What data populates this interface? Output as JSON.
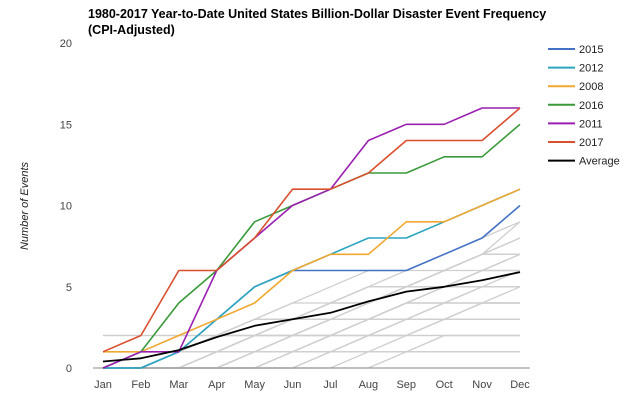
{
  "chart_data": {
    "type": "line",
    "title": "1980-2017 Year-to-Date United States Billion-Dollar Disaster Event Frequency (CPI-Adjusted)",
    "xlabel": "",
    "ylabel": "Number of Events",
    "categories": [
      "Jan",
      "Feb",
      "Mar",
      "Apr",
      "May",
      "Jun",
      "Jul",
      "Aug",
      "Sep",
      "Oct",
      "Nov",
      "Dec"
    ],
    "ylim": [
      0,
      20
    ],
    "yticks": [
      0,
      5,
      10,
      15,
      20
    ],
    "grid": false,
    "legend_position": "right",
    "series": [
      {
        "name": "2015",
        "color": "#4472c4",
        "values": [
          0,
          0,
          1,
          3,
          5,
          6,
          6,
          6,
          6,
          7,
          8,
          10
        ]
      },
      {
        "name": "2012",
        "color": "#2aa5c0",
        "values": [
          0,
          0,
          1,
          3,
          5,
          6,
          7,
          8,
          8,
          9,
          10,
          11
        ]
      },
      {
        "name": "2008",
        "color": "#f0a830",
        "values": [
          1,
          1,
          2,
          3,
          4,
          6,
          7,
          7,
          9,
          9,
          10,
          11
        ]
      },
      {
        "name": "2016",
        "color": "#3a9a3a",
        "values": [
          0,
          1,
          4,
          6,
          9,
          10,
          11,
          12,
          12,
          13,
          13,
          15
        ]
      },
      {
        "name": "2011",
        "color": "#9a1fb0",
        "values": [
          0,
          1,
          1,
          6,
          8,
          10,
          11,
          14,
          15,
          15,
          16,
          16
        ]
      },
      {
        "name": "2017",
        "color": "#d9502e",
        "values": [
          1,
          2,
          6,
          6,
          8,
          11,
          11,
          12,
          14,
          14,
          14,
          16
        ]
      },
      {
        "name": "Average",
        "color": "#000000",
        "values": [
          0.4,
          0.6,
          1.1,
          1.9,
          2.6,
          3.0,
          3.4,
          4.1,
          4.7,
          5.0,
          5.4,
          5.9
        ]
      }
    ],
    "background_series_color": "#cfcfcf",
    "background_series": [
      [
        0,
        0,
        0,
        0,
        0,
        1,
        2,
        3,
        4,
        5,
        6,
        6
      ],
      [
        0,
        0,
        0,
        0,
        1,
        2,
        2,
        3,
        3,
        4,
        4,
        4
      ],
      [
        0,
        0,
        1,
        1,
        1,
        2,
        2,
        3,
        4,
        4,
        5,
        5
      ],
      [
        0,
        1,
        1,
        1,
        1,
        1,
        2,
        2,
        2,
        3,
        3,
        3
      ],
      [
        2,
        2,
        2,
        2,
        3,
        3,
        3,
        3,
        4,
        5,
        6,
        7
      ],
      [
        1,
        1,
        1,
        1,
        1,
        1,
        1,
        1,
        1,
        1,
        1,
        1
      ],
      [
        0,
        0,
        0,
        1,
        2,
        3,
        4,
        5,
        5,
        6,
        7,
        8
      ],
      [
        0,
        0,
        1,
        2,
        2,
        3,
        4,
        4,
        5,
        6,
        7,
        7
      ],
      [
        0,
        0,
        0,
        0,
        0,
        0,
        1,
        2,
        3,
        4,
        5,
        6
      ],
      [
        1,
        1,
        1,
        2,
        2,
        2,
        3,
        3,
        3,
        4,
        4,
        4
      ],
      [
        0,
        0,
        0,
        1,
        1,
        2,
        3,
        3,
        4,
        5,
        5,
        5
      ],
      [
        0,
        0,
        1,
        1,
        2,
        2,
        3,
        3,
        3,
        3,
        3,
        3
      ],
      [
        0,
        1,
        1,
        2,
        3,
        4,
        5,
        6,
        6,
        7,
        8,
        9
      ],
      [
        0,
        0,
        0,
        0,
        1,
        1,
        1,
        2,
        2,
        2,
        2,
        2
      ],
      [
        0,
        0,
        0,
        1,
        1,
        1,
        2,
        2,
        3,
        3,
        4,
        4
      ],
      [
        0,
        0,
        0,
        0,
        0,
        1,
        1,
        2,
        2,
        3,
        3,
        3
      ],
      [
        0,
        0,
        1,
        2,
        2,
        3,
        3,
        4,
        5,
        5,
        6,
        6
      ],
      [
        0,
        0,
        0,
        0,
        0,
        0,
        0,
        1,
        1,
        1,
        1,
        1
      ],
      [
        1,
        1,
        2,
        2,
        3,
        3,
        4,
        5,
        6,
        6,
        6,
        7
      ],
      [
        0,
        0,
        0,
        0,
        0,
        0,
        0,
        0,
        1,
        2,
        2,
        2
      ],
      [
        0,
        0,
        0,
        0,
        1,
        1,
        2,
        3,
        4,
        4,
        5,
        5
      ],
      [
        0,
        0,
        0,
        1,
        2,
        2,
        3,
        3,
        4,
        4,
        4,
        4
      ],
      [
        0,
        0,
        1,
        2,
        3,
        4,
        4,
        5,
        5,
        6,
        7,
        8
      ],
      [
        1,
        1,
        1,
        1,
        2,
        2,
        2,
        3,
        3,
        3,
        4,
        4
      ],
      [
        0,
        0,
        0,
        0,
        0,
        0,
        1,
        1,
        2,
        3,
        4,
        5
      ],
      [
        0,
        0,
        0,
        1,
        1,
        2,
        2,
        2,
        3,
        3,
        3,
        3
      ],
      [
        0,
        0,
        1,
        1,
        2,
        3,
        4,
        4,
        5,
        5,
        6,
        6
      ],
      [
        0,
        1,
        1,
        1,
        2,
        2,
        3,
        3,
        4,
        5,
        5,
        5
      ],
      [
        0,
        0,
        0,
        0,
        0,
        1,
        1,
        1,
        1,
        2,
        2,
        2
      ],
      [
        0,
        0,
        0,
        1,
        2,
        3,
        4,
        4,
        5,
        6,
        7,
        7
      ],
      [
        2,
        2,
        2,
        2,
        2,
        2,
        2,
        2,
        2,
        2,
        2,
        2
      ],
      [
        0,
        0,
        0,
        0,
        1,
        2,
        3,
        4,
        5,
        6,
        7,
        9
      ]
    ]
  }
}
